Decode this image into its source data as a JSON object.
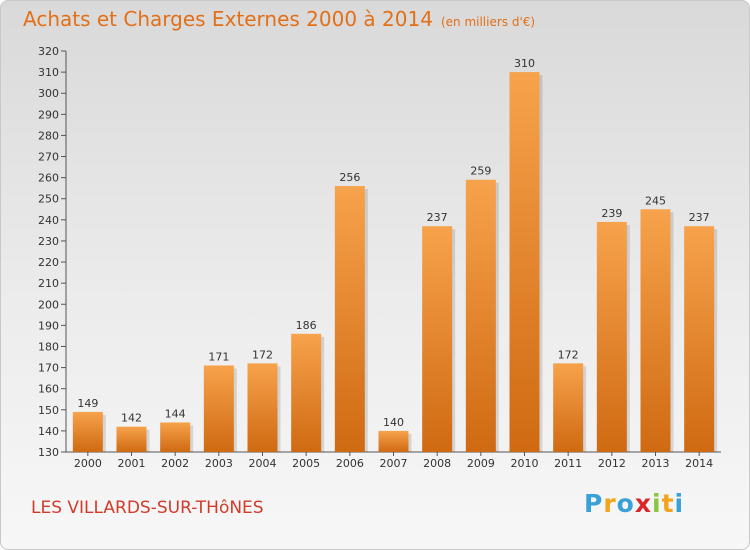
{
  "header": {
    "title": "Achats et Charges Externes 2000 à 2014",
    "unit": "(en milliers d'€)"
  },
  "footer": {
    "town": "LES VILLARDS-SUR-THôNES",
    "logo": {
      "letters": [
        "P",
        "r",
        "o",
        "x",
        "i",
        "t",
        "i"
      ],
      "colors": [
        "#3aa0d8",
        "#f2a41c",
        "#3aa0d8",
        "#d8262c",
        "#8cc63f",
        "#f2a41c",
        "#3aa0d8"
      ]
    }
  },
  "colors": {
    "bar_light": "#f7a24c",
    "bar_dark": "#cf6a12",
    "title": "#e36f17",
    "town": "#d23b2a"
  },
  "chart_data": {
    "type": "bar",
    "categories": [
      "2000",
      "2001",
      "2002",
      "2003",
      "2004",
      "2005",
      "2006",
      "2007",
      "2008",
      "2009",
      "2010",
      "2011",
      "2012",
      "2013",
      "2014"
    ],
    "values": [
      149,
      142,
      144,
      171,
      172,
      186,
      256,
      140,
      237,
      259,
      310,
      172,
      239,
      245,
      237
    ],
    "title": "Achats et Charges Externes 2000 à 2014",
    "xlabel": "",
    "ylabel": "",
    "ylim": [
      130,
      320
    ],
    "ytick_step": 10,
    "grid": false,
    "data_labels": true
  }
}
